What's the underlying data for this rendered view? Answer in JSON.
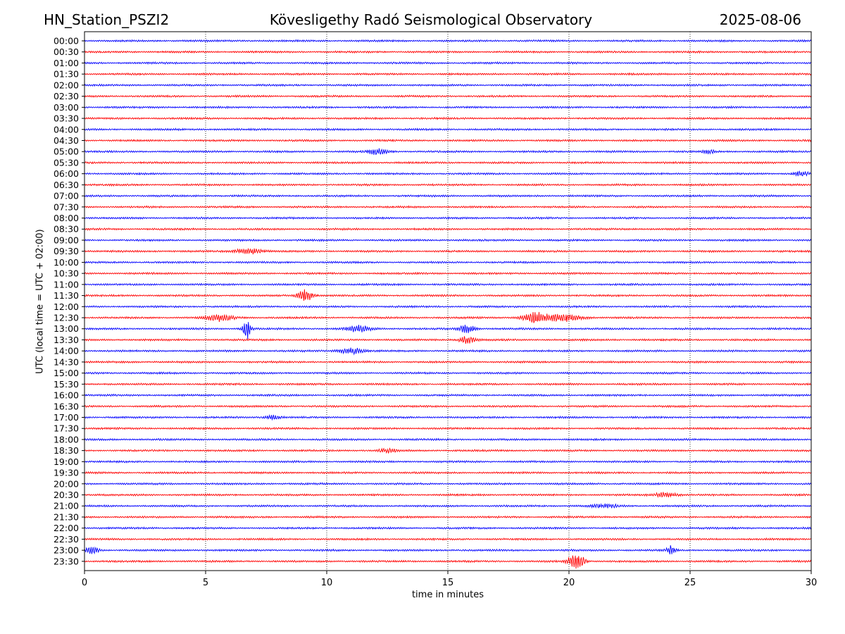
{
  "header": {
    "station": "HN_Station_PSZI2",
    "observatory": "Kövesligethy Radó Seismological Observatory",
    "date": "2025-08-06"
  },
  "chart_data": {
    "type": "line",
    "xlabel": "time in minutes",
    "ylabel": "UTC (local time = UTC + 02:00)",
    "xlim": [
      0,
      30
    ],
    "xticks": [
      0,
      5,
      10,
      15,
      20,
      25,
      30
    ],
    "vertical_gridlines_at": [
      5,
      10,
      15,
      20,
      25
    ],
    "rows": [
      "00:00",
      "00:30",
      "01:00",
      "01:30",
      "02:00",
      "02:30",
      "03:00",
      "03:30",
      "04:00",
      "04:30",
      "05:00",
      "05:30",
      "06:00",
      "06:30",
      "07:00",
      "07:30",
      "08:00",
      "08:30",
      "09:00",
      "09:30",
      "10:00",
      "10:30",
      "11:00",
      "11:30",
      "12:00",
      "12:30",
      "13:00",
      "13:30",
      "14:00",
      "14:30",
      "15:00",
      "15:30",
      "16:00",
      "16:30",
      "17:00",
      "17:30",
      "18:00",
      "18:30",
      "19:00",
      "19:30",
      "20:00",
      "20:30",
      "21:00",
      "21:30",
      "22:00",
      "22:30",
      "23:00",
      "23:30"
    ],
    "row_colors": [
      "#0000ff",
      "#ff0000"
    ],
    "grid": true,
    "events": [
      {
        "row": "05:00",
        "minute": 12.1,
        "amplitude": 0.45,
        "width": 0.6
      },
      {
        "row": "05:00",
        "minute": 25.8,
        "amplitude": 0.25,
        "width": 0.4
      },
      {
        "row": "06:00",
        "minute": 29.6,
        "amplitude": 0.3,
        "width": 0.5
      },
      {
        "row": "09:30",
        "minute": 6.8,
        "amplitude": 0.35,
        "width": 0.9
      },
      {
        "row": "11:30",
        "minute": 9.1,
        "amplitude": 0.8,
        "width": 0.5
      },
      {
        "row": "12:30",
        "minute": 5.6,
        "amplitude": 0.45,
        "width": 0.9
      },
      {
        "row": "12:30",
        "minute": 18.6,
        "amplitude": 0.7,
        "width": 0.8
      },
      {
        "row": "12:30",
        "minute": 19.8,
        "amplitude": 0.45,
        "width": 1.2
      },
      {
        "row": "13:00",
        "minute": 6.7,
        "amplitude": 1.4,
        "width": 0.25
      },
      {
        "row": "13:00",
        "minute": 11.3,
        "amplitude": 0.4,
        "width": 0.8
      },
      {
        "row": "13:00",
        "minute": 15.8,
        "amplitude": 0.55,
        "width": 0.5
      },
      {
        "row": "13:30",
        "minute": 15.8,
        "amplitude": 0.5,
        "width": 0.5
      },
      {
        "row": "14:00",
        "minute": 11.0,
        "amplitude": 0.4,
        "width": 0.8
      },
      {
        "row": "17:00",
        "minute": 7.8,
        "amplitude": 0.3,
        "width": 0.5
      },
      {
        "row": "18:30",
        "minute": 12.5,
        "amplitude": 0.25,
        "width": 0.6
      },
      {
        "row": "20:30",
        "minute": 24.0,
        "amplitude": 0.3,
        "width": 0.8
      },
      {
        "row": "21:00",
        "minute": 21.5,
        "amplitude": 0.25,
        "width": 0.8
      },
      {
        "row": "23:00",
        "minute": 0.3,
        "amplitude": 0.5,
        "width": 0.4
      },
      {
        "row": "23:00",
        "minute": 24.2,
        "amplitude": 0.55,
        "width": 0.3
      },
      {
        "row": "23:30",
        "minute": 20.3,
        "amplitude": 1.1,
        "width": 0.5
      }
    ]
  }
}
